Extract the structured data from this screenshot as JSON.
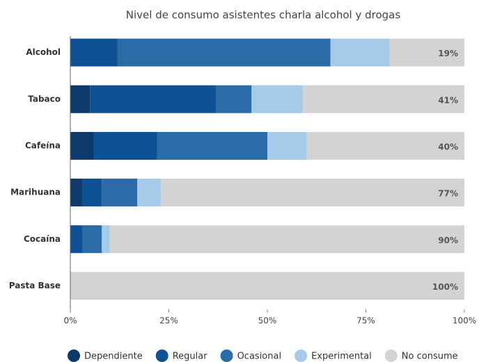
{
  "chart_data": {
    "type": "stacked-barh",
    "title": "Nivel de consumo asistentes charla alcohol y drogas",
    "categories": [
      "Alcohol",
      "Tabaco",
      "Cafeína",
      "Marihuana",
      "Cocaína",
      "Pasta Base"
    ],
    "series": [
      {
        "name": "Dependiente",
        "color": "#0b3a6b",
        "values": [
          0,
          5,
          6,
          3,
          0,
          0
        ]
      },
      {
        "name": "Regular",
        "color": "#0e5194",
        "values": [
          12,
          32,
          16,
          5,
          3,
          0
        ]
      },
      {
        "name": "Ocasional",
        "color": "#2b6ca8",
        "values": [
          54,
          9,
          28,
          9,
          5,
          0
        ]
      },
      {
        "name": "Experimental",
        "color": "#a6cbea",
        "values": [
          15,
          13,
          10,
          6,
          2,
          0
        ]
      },
      {
        "name": "No consume",
        "color": "#d3d3d3",
        "values": [
          19,
          41,
          40,
          77,
          90,
          100
        ],
        "value_labels": [
          "19%",
          "41%",
          "40%",
          "77%",
          "90%",
          "100%"
        ]
      }
    ],
    "xlim": [
      0,
      100
    ],
    "xticks": [
      {
        "value": 0,
        "label": "0%"
      },
      {
        "value": 25,
        "label": "25%"
      },
      {
        "value": 50,
        "label": "50%"
      },
      {
        "value": 75,
        "label": "75%"
      },
      {
        "value": 100,
        "label": "100%"
      }
    ],
    "legend": "bottom"
  }
}
